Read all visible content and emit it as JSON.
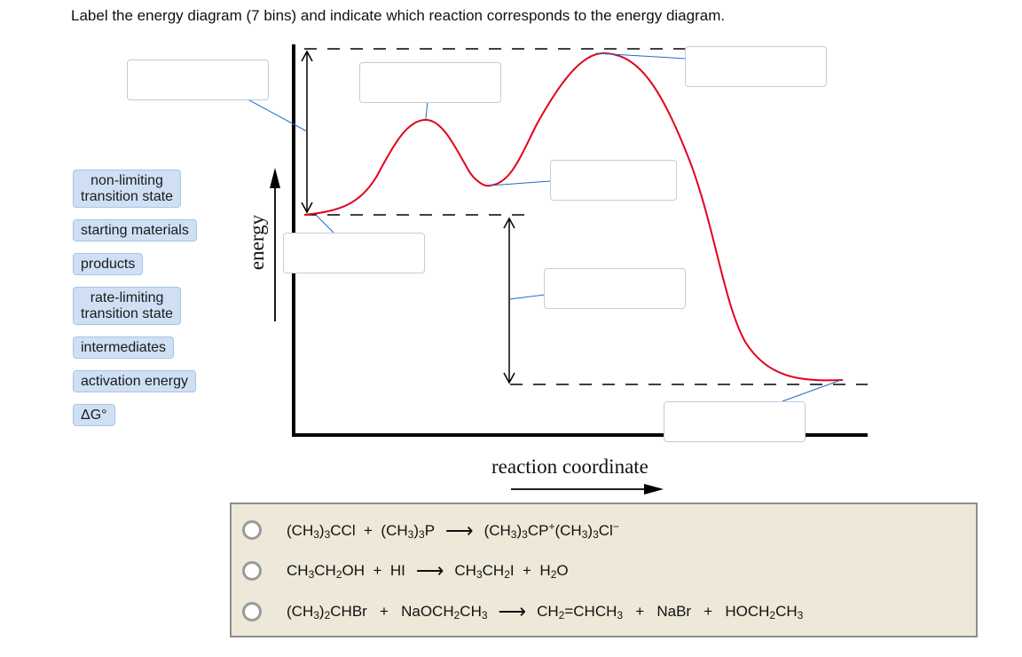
{
  "question": "Label the energy diagram (7 bins) and indicate which reaction corresponds to the energy diagram.",
  "chips": [
    {
      "id": "non-limiting",
      "lines": [
        "non-limiting",
        "transition state"
      ]
    },
    {
      "id": "starting",
      "lines": [
        "starting materials"
      ]
    },
    {
      "id": "products",
      "lines": [
        "products"
      ]
    },
    {
      "id": "rate-limiting",
      "lines": [
        "rate-limiting",
        "transition state"
      ]
    },
    {
      "id": "intermediates",
      "lines": [
        "intermediates"
      ]
    },
    {
      "id": "activation",
      "lines": [
        "activation energy"
      ]
    },
    {
      "id": "deltag",
      "lines": [
        "ΔG°"
      ]
    }
  ],
  "axes": {
    "y_label": "energy",
    "x_label": "reaction coordinate"
  },
  "bins_count": 7,
  "colors": {
    "curve": "#e3001b",
    "leader": "#1a6fc9",
    "chip_bg": "#cfe0f5",
    "panel_bg": "#ede8d8"
  },
  "reactions": [
    {
      "id": "r1",
      "parts": [
        [
          "t",
          "(CH"
        ],
        [
          "sub",
          "3"
        ],
        [
          "t",
          ")"
        ],
        [
          "sub",
          "3"
        ],
        [
          "t",
          "CCl  +  (CH"
        ],
        [
          "sub",
          "3"
        ],
        [
          "t",
          ")"
        ],
        [
          "sub",
          "3"
        ],
        [
          "t",
          "P"
        ],
        [
          "arr",
          "⟶"
        ],
        [
          "t",
          "(CH"
        ],
        [
          "sub",
          "3"
        ],
        [
          "t",
          ")"
        ],
        [
          "sub",
          "3"
        ],
        [
          "t",
          "CP"
        ],
        [
          "sup",
          "+"
        ],
        [
          "t",
          "(CH"
        ],
        [
          "sub",
          "3"
        ],
        [
          "t",
          ")"
        ],
        [
          "sub",
          "3"
        ],
        [
          "t",
          "Cl"
        ],
        [
          "sup",
          "−"
        ]
      ]
    },
    {
      "id": "r2",
      "parts": [
        [
          "t",
          "CH"
        ],
        [
          "sub",
          "3"
        ],
        [
          "t",
          "CH"
        ],
        [
          "sub",
          "2"
        ],
        [
          "t",
          "OH  +  HI"
        ],
        [
          "arr",
          "⟶"
        ],
        [
          "t",
          "CH"
        ],
        [
          "sub",
          "3"
        ],
        [
          "t",
          "CH"
        ],
        [
          "sub",
          "2"
        ],
        [
          "t",
          "I  +  H"
        ],
        [
          "sub",
          "2"
        ],
        [
          "t",
          "O"
        ]
      ]
    },
    {
      "id": "r3",
      "parts": [
        [
          "t",
          "(CH"
        ],
        [
          "sub",
          "3"
        ],
        [
          "t",
          ")"
        ],
        [
          "sub",
          "2"
        ],
        [
          "t",
          "CHBr   +   NaOCH"
        ],
        [
          "sub",
          "2"
        ],
        [
          "t",
          "CH"
        ],
        [
          "sub",
          "3"
        ],
        [
          "arr",
          "⟶"
        ],
        [
          "t",
          "CH"
        ],
        [
          "sub",
          "2"
        ],
        [
          "t",
          "=CHCH"
        ],
        [
          "sub",
          "3"
        ],
        [
          "t",
          "   +   NaBr   +   HOCH"
        ],
        [
          "sub",
          "2"
        ],
        [
          "t",
          "CH"
        ],
        [
          "sub",
          "3"
        ]
      ]
    }
  ]
}
